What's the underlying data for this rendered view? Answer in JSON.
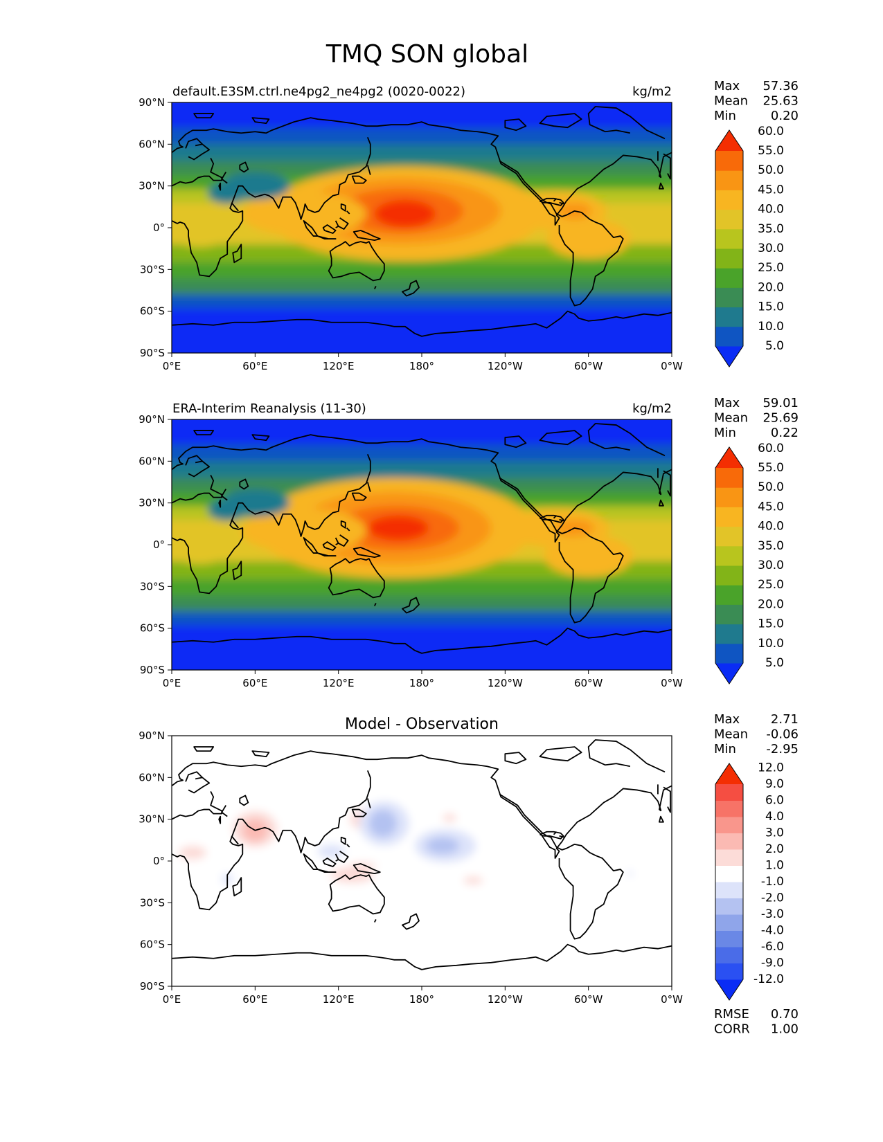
{
  "title": "TMQ SON global",
  "chart_data": [
    {
      "type": "heatmap",
      "subtitle_left": "default.E3SM.ctrl.ne4pg2_ne4pg2 (0020-0022)",
      "subtitle_center": "",
      "units": "kg/m2",
      "stats": [
        {
          "label": "Max",
          "value": "57.36"
        },
        {
          "label": "Mean",
          "value": "25.63"
        },
        {
          "label": "Min",
          "value": "0.20"
        }
      ],
      "colorbar": {
        "colors": [
          "#0A2CF5",
          "#0F55C2",
          "#1F7A8E",
          "#3A8C54",
          "#4AA32A",
          "#82B418",
          "#B8C51E",
          "#E2C428",
          "#F8B521",
          "#F99514",
          "#F86A09",
          "#F42E02"
        ],
        "tick_labels": [
          "5.0",
          "10.0",
          "15.0",
          "20.0",
          "25.0",
          "30.0",
          "35.0",
          "40.0",
          "45.0",
          "50.0",
          "55.0",
          "60.0"
        ]
      },
      "xticks": [
        "0°E",
        "60°E",
        "120°E",
        "180°",
        "120°W",
        "60°W",
        "0°W"
      ],
      "yticks": [
        "90°N",
        "60°N",
        "30°N",
        "0°",
        "30°S",
        "60°S",
        "90°S"
      ],
      "lon_range": [
        0,
        360
      ],
      "lat_range": [
        -90,
        90
      ],
      "bands": [
        {
          "lat": [
            72,
            90
          ],
          "value": 3.0
        },
        {
          "lat": [
            60,
            72
          ],
          "value": 8.0
        },
        {
          "lat": [
            48,
            60
          ],
          "value": 14.0
        },
        {
          "lat": [
            38,
            48
          ],
          "value": 19.0
        },
        {
          "lat": [
            28,
            38
          ],
          "value": 24.0
        },
        {
          "lat": [
            18,
            28
          ],
          "value": 31.0
        },
        {
          "lat": [
            -12,
            18
          ],
          "value": 36.0
        },
        {
          "lat": [
            -25,
            -12
          ],
          "value": 28.0
        },
        {
          "lat": [
            -37,
            -25
          ],
          "value": 21.0
        },
        {
          "lat": [
            -48,
            -37
          ],
          "value": 15.0
        },
        {
          "lat": [
            -58,
            -48
          ],
          "value": 9.0
        },
        {
          "lat": [
            -90,
            -58
          ],
          "value": 3.0
        }
      ],
      "features": [
        {
          "lon": 168,
          "lat": 10,
          "rlon": 100,
          "rlat": 34,
          "value": 41
        },
        {
          "lon": 165,
          "lat": 12,
          "rlon": 72,
          "rlat": 24,
          "value": 47
        },
        {
          "lon": 165,
          "lat": 12,
          "rlon": 45,
          "rlat": 16,
          "value": 51
        },
        {
          "lon": 168,
          "lat": 10,
          "rlon": 22,
          "rlat": 10,
          "value": 56
        },
        {
          "lon": 95,
          "lat": 10,
          "rlon": 45,
          "rlat": 16,
          "value": 41
        },
        {
          "lon": 277,
          "lat": 12,
          "rlon": 36,
          "rlat": 14,
          "value": 43
        },
        {
          "lon": 290,
          "lat": 12,
          "rlon": 12,
          "rlat": 6,
          "value": 48
        },
        {
          "lon": 300,
          "lat": -8,
          "rlon": 30,
          "rlat": 14,
          "value": 40
        },
        {
          "lon": 20,
          "lat": 0,
          "rlon": 25,
          "rlat": 14,
          "value": 36
        },
        {
          "lon": 60,
          "lat": 30,
          "rlon": 25,
          "rlat": 10,
          "value": 14
        },
        {
          "lon": 40,
          "lat": 25,
          "rlon": 14,
          "rlat": 8,
          "value": 12
        }
      ]
    },
    {
      "type": "heatmap",
      "subtitle_left": "ERA-Interim Reanalysis (11-30)",
      "subtitle_center": "",
      "units": "kg/m2",
      "stats": [
        {
          "label": "Max",
          "value": "59.01"
        },
        {
          "label": "Mean",
          "value": "25.69"
        },
        {
          "label": "Min",
          "value": "0.22"
        }
      ],
      "colorbar": {
        "colors": [
          "#0A2CF5",
          "#0F55C2",
          "#1F7A8E",
          "#3A8C54",
          "#4AA32A",
          "#82B418",
          "#B8C51E",
          "#E2C428",
          "#F8B521",
          "#F99514",
          "#F86A09",
          "#F42E02"
        ],
        "tick_labels": [
          "5.0",
          "10.0",
          "15.0",
          "20.0",
          "25.0",
          "30.0",
          "35.0",
          "40.0",
          "45.0",
          "50.0",
          "55.0",
          "60.0"
        ]
      },
      "xticks": [
        "0°E",
        "60°E",
        "120°E",
        "180°",
        "120°W",
        "60°W",
        "0°W"
      ],
      "yticks": [
        "90°N",
        "60°N",
        "30°N",
        "0°",
        "30°S",
        "60°S",
        "90°S"
      ],
      "lon_range": [
        0,
        360
      ],
      "lat_range": [
        -90,
        90
      ],
      "bands": [
        {
          "lat": [
            72,
            90
          ],
          "value": 3.0
        },
        {
          "lat": [
            60,
            72
          ],
          "value": 8.0
        },
        {
          "lat": [
            48,
            60
          ],
          "value": 14.0
        },
        {
          "lat": [
            38,
            48
          ],
          "value": 19.0
        },
        {
          "lat": [
            28,
            38
          ],
          "value": 24.0
        },
        {
          "lat": [
            18,
            28
          ],
          "value": 31.0
        },
        {
          "lat": [
            -12,
            18
          ],
          "value": 38.0
        },
        {
          "lat": [
            -25,
            -12
          ],
          "value": 28.0
        },
        {
          "lat": [
            -37,
            -25
          ],
          "value": 21.0
        },
        {
          "lat": [
            -48,
            -37
          ],
          "value": 15.0
        },
        {
          "lat": [
            -58,
            -48
          ],
          "value": 9.0
        },
        {
          "lat": [
            -90,
            -58
          ],
          "value": 3.0
        }
      ],
      "features": [
        {
          "lon": 160,
          "lat": 12,
          "rlon": 100,
          "rlat": 36,
          "value": 42
        },
        {
          "lon": 160,
          "lat": 12,
          "rlon": 70,
          "rlat": 26,
          "value": 47
        },
        {
          "lon": 162,
          "lat": 12,
          "rlon": 45,
          "rlat": 16,
          "value": 52
        },
        {
          "lon": 163,
          "lat": 12,
          "rlon": 22,
          "rlat": 9,
          "value": 56
        },
        {
          "lon": 95,
          "lat": 10,
          "rlon": 45,
          "rlat": 16,
          "value": 42
        },
        {
          "lon": 277,
          "lat": 12,
          "rlon": 38,
          "rlat": 14,
          "value": 44
        },
        {
          "lon": 290,
          "lat": 12,
          "rlon": 14,
          "rlat": 6,
          "value": 48
        },
        {
          "lon": 300,
          "lat": -8,
          "rlon": 32,
          "rlat": 15,
          "value": 41
        },
        {
          "lon": 20,
          "lat": 0,
          "rlon": 25,
          "rlat": 14,
          "value": 36
        },
        {
          "lon": 60,
          "lat": 30,
          "rlon": 25,
          "rlat": 10,
          "value": 14
        },
        {
          "lon": 40,
          "lat": 25,
          "rlon": 14,
          "rlat": 8,
          "value": 12
        }
      ]
    },
    {
      "type": "heatmap",
      "subtitle_left": "",
      "subtitle_center": "Model - Observation",
      "units": "",
      "stats": [
        {
          "label": "Max",
          "value": "2.71"
        },
        {
          "label": "Mean",
          "value": "-0.06"
        },
        {
          "label": "Min",
          "value": "-2.95"
        }
      ],
      "colorbar": {
        "colors": [
          "#0A2CF5",
          "#2A50F2",
          "#4A6CE8",
          "#6A88E6",
          "#8FA5EA",
          "#B4C2F1",
          "#DDE3FA",
          "#FFFFFF",
          "#FCDCD8",
          "#FBBAB3",
          "#F9968C",
          "#F77367",
          "#F54E42",
          "#F42E02"
        ],
        "tick_labels": [
          "-12.0",
          "-9.0",
          "-6.0",
          "-4.0",
          "-3.0",
          "-2.0",
          "-1.0",
          "1.0",
          "2.0",
          "3.0",
          "4.0",
          "6.0",
          "9.0",
          "12.0"
        ]
      },
      "bottom_stats": [
        {
          "label": "RMSE",
          "value": "0.70"
        },
        {
          "label": "CORR",
          "value": "1.00"
        }
      ],
      "xticks": [
        "0°E",
        "60°E",
        "120°E",
        "180°",
        "120°W",
        "60°W",
        "0°W"
      ],
      "yticks": [
        "90°N",
        "60°N",
        "30°N",
        "0°",
        "30°S",
        "60°S",
        "90°S"
      ],
      "lon_range": [
        0,
        360
      ],
      "lat_range": [
        -90,
        90
      ],
      "bands": [
        {
          "lat": [
            -90,
            90
          ],
          "value": 0.0
        }
      ],
      "features": [
        {
          "lon": 60,
          "lat": 23,
          "rlon": 16,
          "rlat": 13,
          "value": 1.5
        },
        {
          "lon": 60,
          "lat": 22,
          "rlon": 9,
          "rlat": 8,
          "value": 2.5
        },
        {
          "lon": 15,
          "lat": 6,
          "rlon": 10,
          "rlat": 5,
          "value": 1.5
        },
        {
          "lon": 40,
          "lat": -13,
          "rlon": 4,
          "rlat": 4,
          "value": -1.5
        },
        {
          "lon": 140,
          "lat": 30,
          "rlon": 12,
          "rlat": 8,
          "value": 1.5
        },
        {
          "lon": 153,
          "lat": 27,
          "rlon": 18,
          "rlat": 16,
          "value": -1.5
        },
        {
          "lon": 152,
          "lat": 27,
          "rlon": 10,
          "rlat": 10,
          "value": -2.5
        },
        {
          "lon": 115,
          "lat": 7,
          "rlon": 10,
          "rlat": 5,
          "value": -1.3
        },
        {
          "lon": 197,
          "lat": 11,
          "rlon": 22,
          "rlat": 12,
          "value": -1.5
        },
        {
          "lon": 195,
          "lat": 11,
          "rlon": 12,
          "rlat": 6,
          "value": -2.5
        },
        {
          "lon": 200,
          "lat": 31,
          "rlon": 5,
          "rlat": 3,
          "value": 1.5
        },
        {
          "lon": 130,
          "lat": -10,
          "rlon": 16,
          "rlat": 6,
          "value": 1.5
        },
        {
          "lon": 138,
          "lat": -3,
          "rlon": 10,
          "rlat": 2,
          "value": 1.3
        },
        {
          "lon": 217,
          "lat": -14,
          "rlon": 7,
          "rlat": 3,
          "value": 1.3
        },
        {
          "lon": 330,
          "lat": -9,
          "rlon": 2,
          "rlat": 2,
          "value": -1.3
        }
      ]
    }
  ]
}
